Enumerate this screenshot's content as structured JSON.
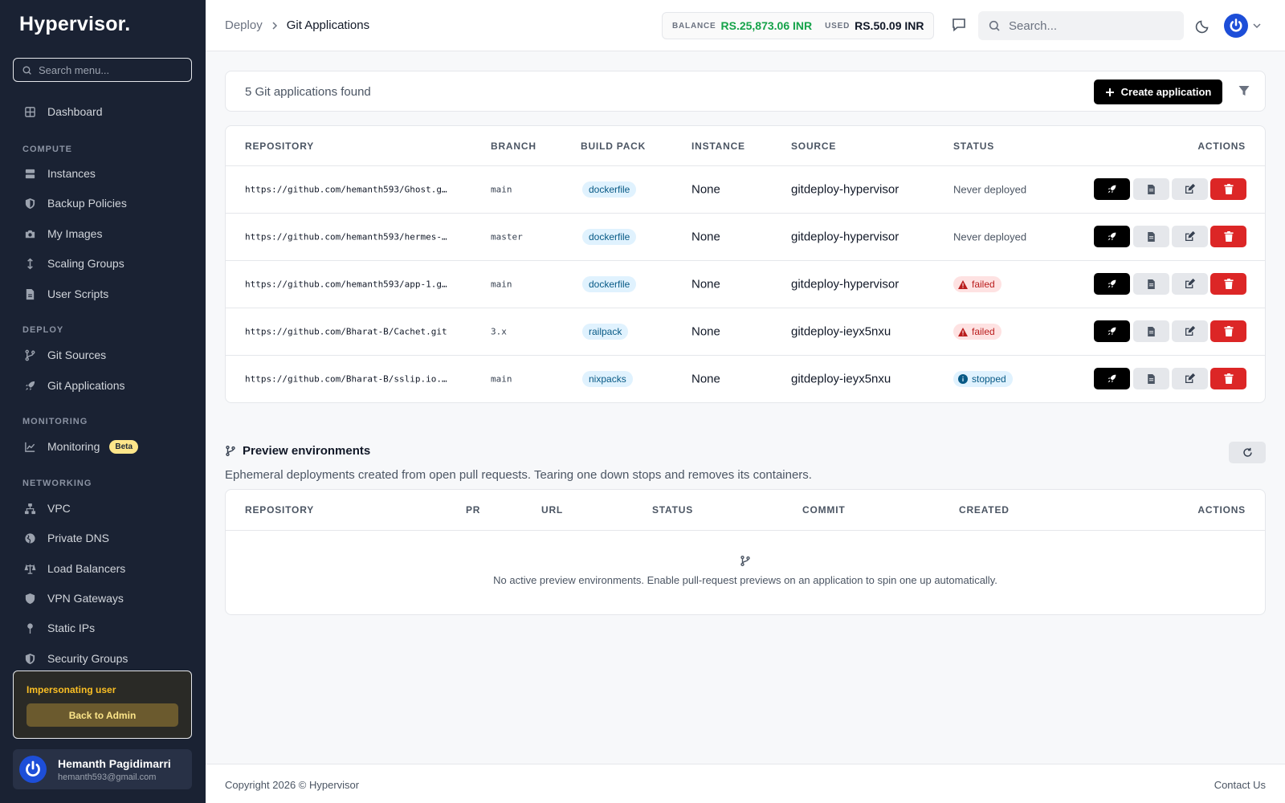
{
  "sidebar": {
    "brand": "Hypervisor.",
    "search_placeholder": "Search menu...",
    "items": {
      "dashboard": "Dashboard",
      "instances": "Instances",
      "backup_policies": "Backup Policies",
      "my_images": "My Images",
      "scaling_groups": "Scaling Groups",
      "user_scripts": "User Scripts",
      "git_sources": "Git Sources",
      "git_applications": "Git Applications",
      "monitoring": "Monitoring",
      "vpc": "VPC",
      "private_dns": "Private DNS",
      "load_balancers": "Load Balancers",
      "vpn_gateways": "VPN Gateways",
      "static_ips": "Static IPs",
      "security_groups": "Security Groups"
    },
    "sections": {
      "compute": "COMPUTE",
      "deploy": "DEPLOY",
      "monitoring": "MONITORING",
      "networking": "NETWORKING"
    },
    "beta_badge": "Beta",
    "impersonation": {
      "label": "Impersonating user",
      "back_button": "Back to Admin"
    },
    "user": {
      "name": "Hemanth Pagidimarri",
      "email": "hemanth593@gmail.com"
    }
  },
  "header": {
    "breadcrumb": [
      "Deploy",
      "Git Applications"
    ],
    "balance_label": "BALANCE",
    "balance_value": "RS.25,873.06 INR",
    "used_label": "USED",
    "used_value": "RS.50.09 INR",
    "search_placeholder": "Search..."
  },
  "apps": {
    "count_text": "5 Git applications found",
    "create_button": "Create application",
    "columns": [
      "REPOSITORY",
      "BRANCH",
      "BUILD PACK",
      "INSTANCE",
      "SOURCE",
      "STATUS",
      "ACTIONS"
    ],
    "rows": [
      {
        "repository": "https://github.com/hemanth593/Ghost.g…",
        "branch": "main",
        "build_pack": "dockerfile",
        "instance": "None",
        "source": "gitdeploy-hypervisor",
        "status": "Never deployed"
      },
      {
        "repository": "https://github.com/hemanth593/hermes-…",
        "branch": "master",
        "build_pack": "dockerfile",
        "instance": "None",
        "source": "gitdeploy-hypervisor",
        "status": "Never deployed"
      },
      {
        "repository": "https://github.com/hemanth593/app-1.g…",
        "branch": "main",
        "build_pack": "dockerfile",
        "instance": "None",
        "source": "gitdeploy-hypervisor",
        "status": "failed"
      },
      {
        "repository": "https://github.com/Bharat-B/Cachet.git",
        "branch": "3.x",
        "build_pack": "railpack",
        "instance": "None",
        "source": "gitdeploy-ieyx5nxu",
        "status": "failed"
      },
      {
        "repository": "https://github.com/Bharat-B/sslip.io.…",
        "branch": "main",
        "build_pack": "nixpacks",
        "instance": "None",
        "source": "gitdeploy-ieyx5nxu",
        "status": "stopped"
      }
    ]
  },
  "previews": {
    "title": "Preview environments",
    "description": "Ephemeral deployments created from open pull requests. Tearing one down stops and removes its containers.",
    "columns": [
      "REPOSITORY",
      "PR",
      "URL",
      "STATUS",
      "COMMIT",
      "CREATED",
      "ACTIONS"
    ],
    "empty_message": "No active preview environments. Enable pull-request previews on an application to spin one up automatically."
  },
  "footer": {
    "copyright": "Copyright 2026 © Hypervisor",
    "contact": "Contact Us"
  },
  "colors": {
    "sidebar_bg": "#1a2233",
    "accent_green": "#16a34a",
    "danger": "#dc2626",
    "primary_black": "#000000"
  }
}
